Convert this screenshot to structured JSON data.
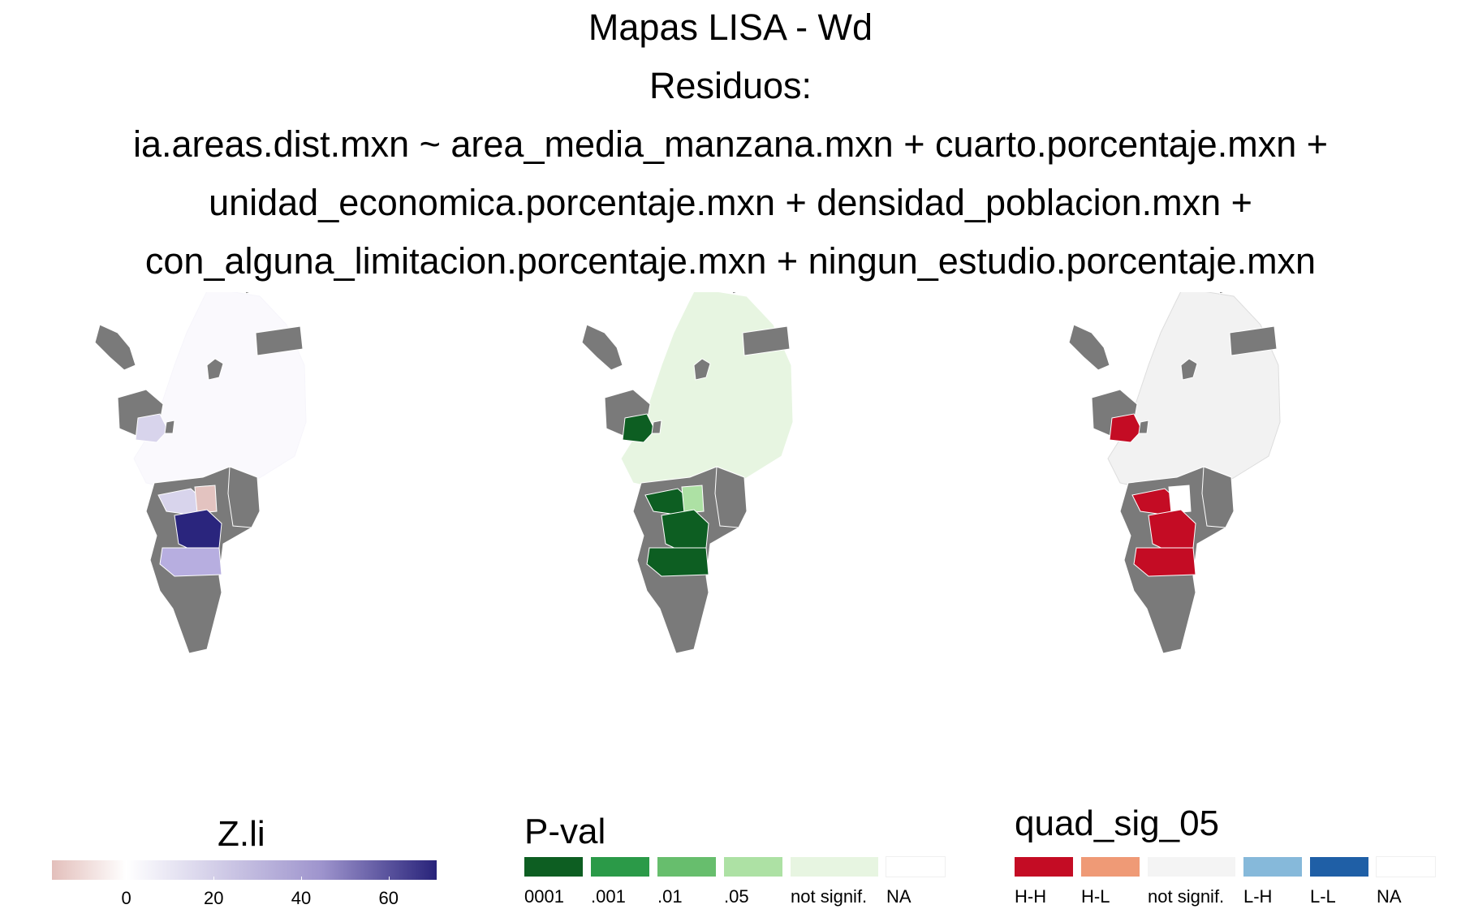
{
  "title": {
    "line1": "Mapas LISA - Wd",
    "line2": "Residuos:",
    "line3": "ia.areas.dist.mxn ~ area_media_manzana.mxn + cuarto.porcentaje.mxn +",
    "line4": "unidad_economica.porcentaje.mxn + densidad_poblacion.mxn +",
    "line5": "con_alguna_limitacion.porcentaje.mxn + ningun_estudio.porcentaje.mxn"
  },
  "legend_zli": {
    "title": "Z.li",
    "ticks": [
      {
        "value": 0,
        "label": "0"
      },
      {
        "value": 20,
        "label": "20"
      },
      {
        "value": 40,
        "label": "40"
      },
      {
        "value": 60,
        "label": "60"
      }
    ],
    "range": [
      -17,
      71
    ],
    "colors": [
      "#e3bfbb",
      "#ffffff",
      "#9e94cd",
      "#28237a"
    ]
  },
  "legend_pval": {
    "title": "P-val",
    "items": [
      {
        "label": "0001",
        "color": "#0d5e22"
      },
      {
        "label": ".001",
        "color": "#2b9a48"
      },
      {
        "label": ".01",
        "color": "#67be6d"
      },
      {
        "label": ".05",
        "color": "#ade1a4"
      },
      {
        "label": "not signif.",
        "color": "#e7f5e1"
      },
      {
        "label": "NA",
        "color": "#ffffff"
      }
    ]
  },
  "legend_quad": {
    "title": "quad_sig_05",
    "items": [
      {
        "label": "H-H",
        "color": "#c40c24"
      },
      {
        "label": "H-L",
        "color": "#ef9a76"
      },
      {
        "label": "not signif.",
        "color": "#f4f4f4"
      },
      {
        "label": "L-H",
        "color": "#86b9da"
      },
      {
        "label": "L-L",
        "color": "#1f5fa6"
      },
      {
        "label": "NA",
        "color": "#ffffff"
      }
    ]
  },
  "map_colors": {
    "na_gray": "#7a7a7a",
    "zli_base": "#faf9fd",
    "zli_light": "#d8d4ec",
    "zli_mid": "#b7aee0",
    "zli_strong": "#8078c4",
    "zli_dark": "#2a257d",
    "zli_neg": "#e3c3c0",
    "pval_base": "#e7f5e1",
    "pval_05": "#ade1a4",
    "pval_sig": "#0d5e22",
    "quad_base": "#f2f2f2",
    "quad_hh": "#c40c24"
  }
}
